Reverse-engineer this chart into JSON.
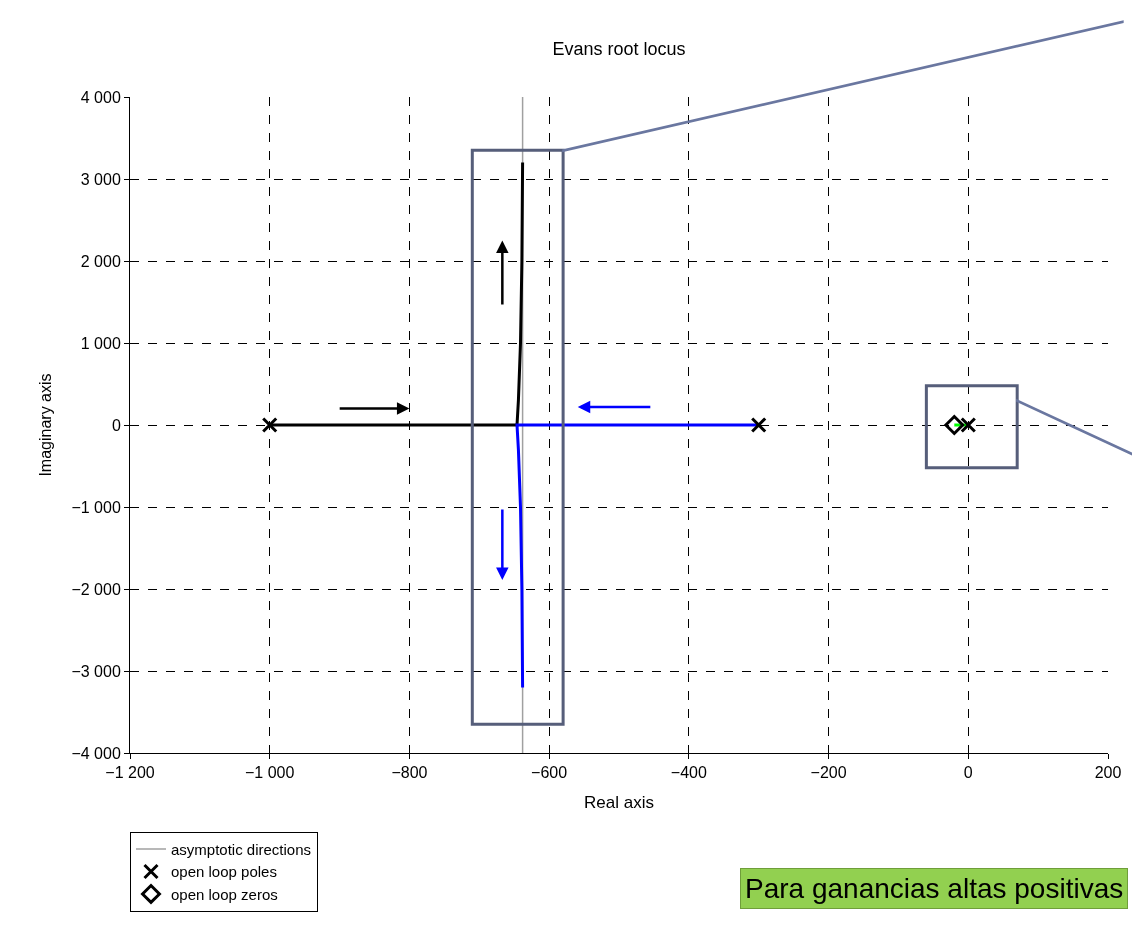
{
  "chart_data": {
    "type": "line",
    "title": "Evans root locus",
    "xlabel": "Real axis",
    "ylabel": "Imaginary axis",
    "xlim": [
      -1200,
      200
    ],
    "ylim": [
      -4000,
      4000
    ],
    "xticks": [
      {
        "value": -1200,
        "label": "−1 200"
      },
      {
        "value": -1000,
        "label": "−1 000"
      },
      {
        "value": -800,
        "label": "−800"
      },
      {
        "value": -600,
        "label": "−600"
      },
      {
        "value": -400,
        "label": "−400"
      },
      {
        "value": -200,
        "label": "−200"
      },
      0,
      200
    ],
    "yticks": [
      {
        "value": -4000,
        "label": "−4 000"
      },
      {
        "value": -3000,
        "label": "−3 000"
      },
      {
        "value": -2000,
        "label": "−2 000"
      },
      {
        "value": -1000,
        "label": "−1 000"
      },
      0,
      {
        "value": 1000,
        "label": "1 000"
      },
      {
        "value": 2000,
        "label": "2 000"
      },
      {
        "value": 3000,
        "label": "3 000"
      },
      {
        "value": 4000,
        "label": "4 000"
      }
    ],
    "grid": true,
    "legend": "bottom left",
    "series": [
      {
        "name": "asymptotic directions",
        "color": "#a0a0a0",
        "x": [
          -638,
          -638
        ],
        "values": [
          -4000,
          4000
        ]
      },
      {
        "color": "#000000",
        "x": [
          -1000,
          -646,
          -644,
          -641,
          -639,
          -638
        ],
        "values": [
          0,
          0,
          300,
          1000,
          2000,
          3200
        ]
      },
      {
        "color": "#0000ff",
        "x": [
          -300,
          -646,
          -644,
          -641,
          -639,
          -638
        ],
        "values": [
          0,
          0,
          -300,
          -1000,
          -2000,
          -3200
        ]
      },
      {
        "color": "#00ff00",
        "x": [
          -20,
          0
        ],
        "values": [
          0,
          0
        ]
      },
      {
        "type": "scatter",
        "name": "open loop poles",
        "color": "#000000",
        "marker": "cross",
        "x": [
          -1000,
          -300,
          0
        ],
        "values": [
          0,
          0,
          0
        ]
      },
      {
        "type": "scatter",
        "name": "open loop zeros",
        "color": "#000000",
        "marker": "diamond",
        "x": [
          -20
        ],
        "values": [
          0
        ]
      }
    ],
    "annotations": [
      "Para ganancias altas positivas"
    ]
  }
}
